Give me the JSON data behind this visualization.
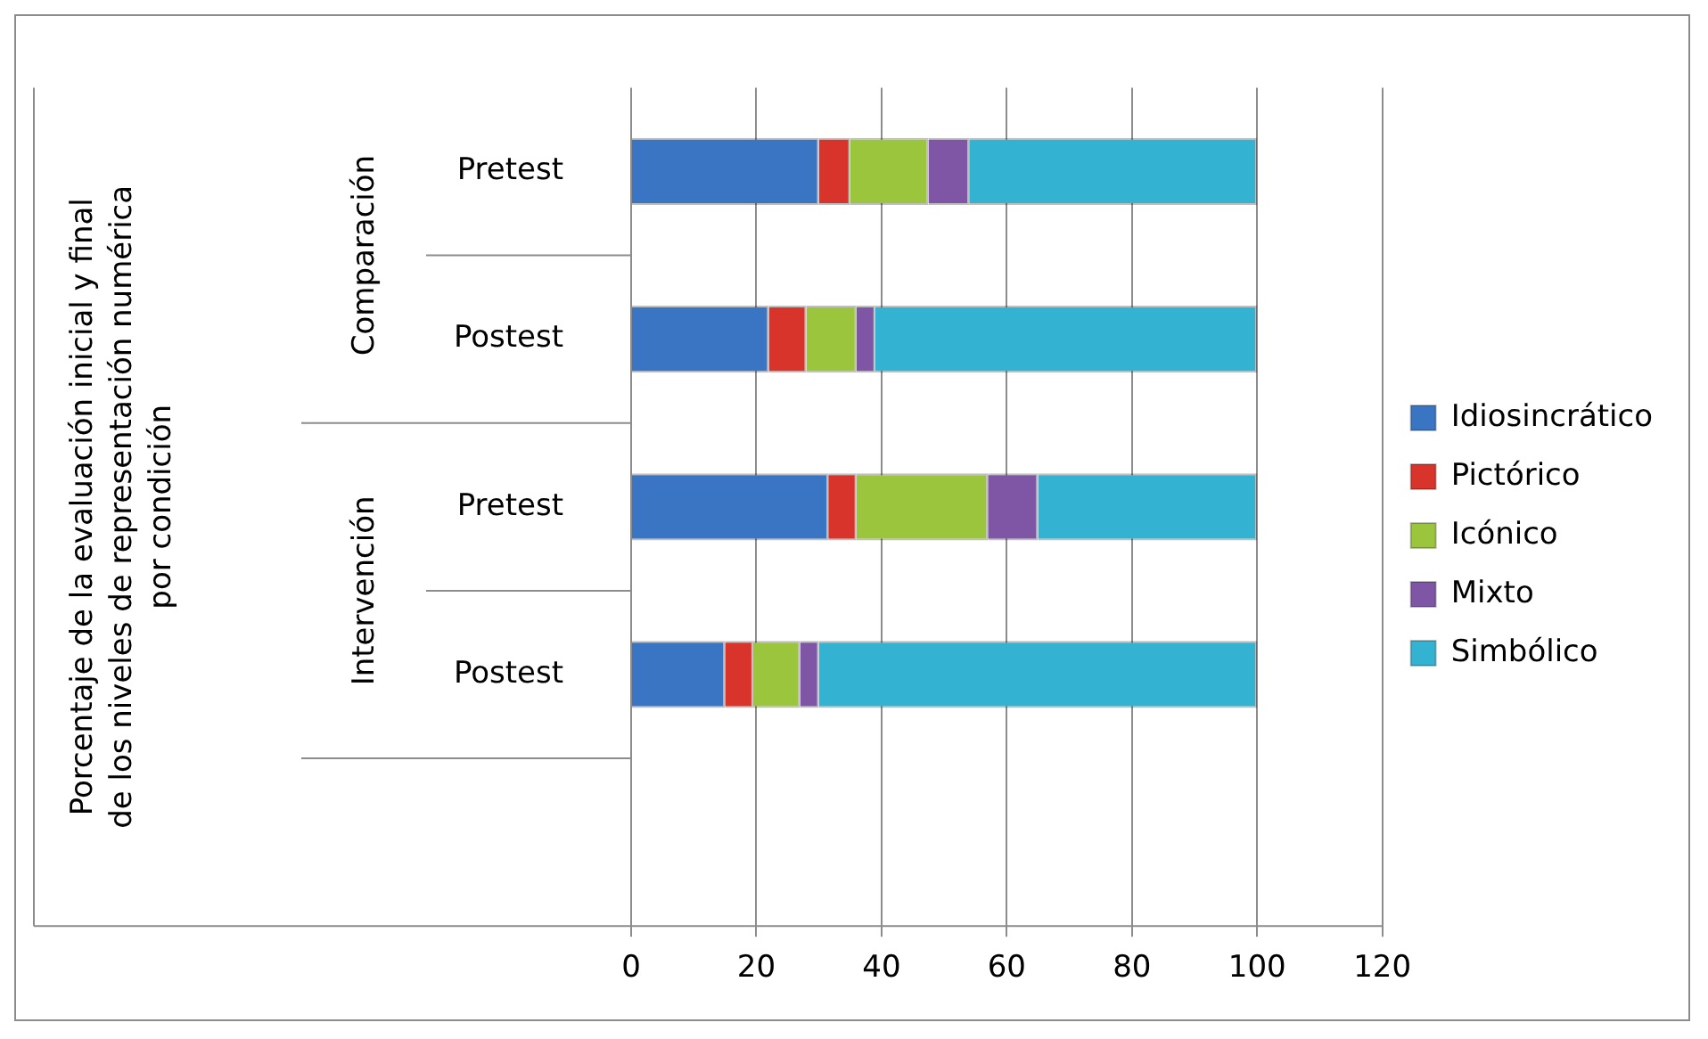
{
  "chart_data": {
    "type": "bar",
    "orientation": "horizontal",
    "stacked": true,
    "categories": [
      "Pretest",
      "Postest",
      "Pretest",
      "Postest",
      null
    ],
    "annotations": [
      "Porcentaje de la evaluación inicial y final\nde los niveles de representación numérica\npor condición",
      "Comparación",
      "Intervención"
    ],
    "series": [
      {
        "name": "Idiosincrático",
        "color": "#3a75c4",
        "values": [
          30,
          22,
          31.5,
          15,
          null
        ]
      },
      {
        "name": "Pictórico",
        "color": "#d9342b",
        "values": [
          5,
          6,
          4.5,
          4.5,
          null
        ]
      },
      {
        "name": "Icónico",
        "color": "#9bc53d",
        "values": [
          12.5,
          8,
          21,
          7.5,
          null
        ]
      },
      {
        "name": "Mixto",
        "color": "#7f55a5",
        "values": [
          6.5,
          3,
          8,
          3,
          null
        ]
      },
      {
        "name": "Simbólico",
        "color": "#33b3d1",
        "values": [
          46,
          61,
          35,
          70,
          null
        ]
      }
    ],
    "xlim": [
      0,
      120
    ],
    "xticks": [
      0,
      20,
      40,
      60,
      80,
      100,
      120
    ],
    "grid": "x",
    "legend": "right"
  }
}
